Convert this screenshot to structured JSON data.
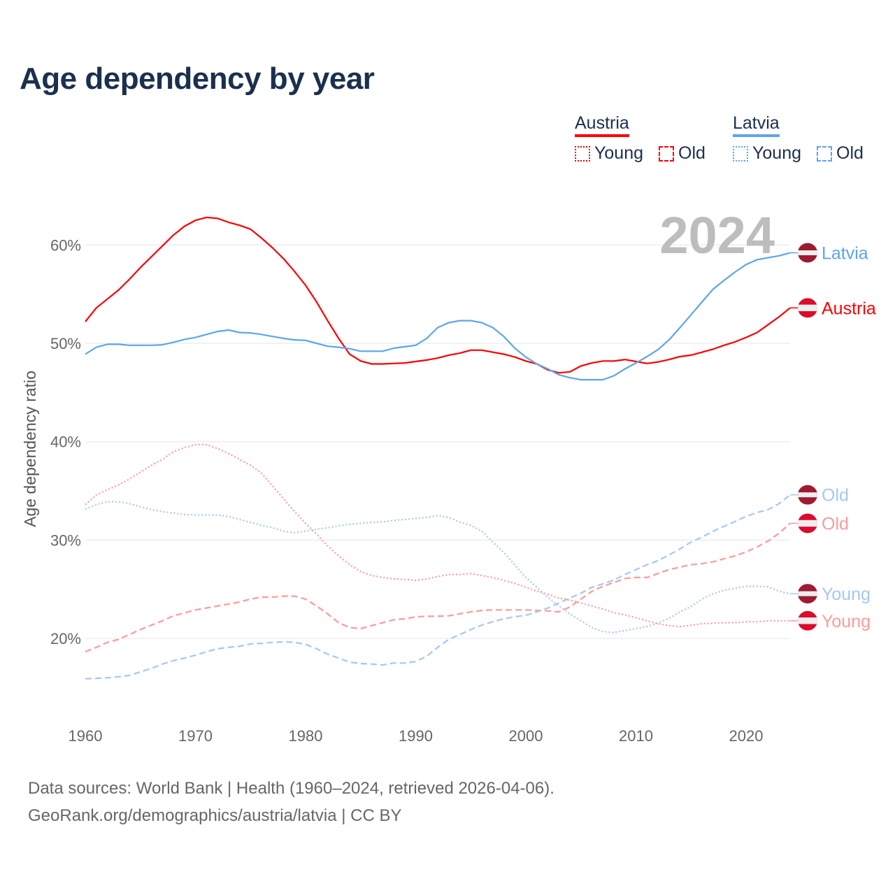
{
  "title": "Age dependency by year",
  "legend": {
    "countries": [
      {
        "name": "Austria",
        "color": "#ff0000",
        "light": "#ff9a9a",
        "items": [
          "Young",
          "Old"
        ]
      },
      {
        "name": "Latvia",
        "color": "#5da5ec",
        "light": "#a6c8ef",
        "items": [
          "Young",
          "Old"
        ]
      }
    ]
  },
  "year_watermark": "2024",
  "source": {
    "line1": "Data sources: World Bank | Health (1960–2024, retrieved 2026-04-06).",
    "line2": "GeoRank.org/demographics/austria/latvia | CC BY"
  },
  "chart_data": {
    "type": "line",
    "title": "Age dependency by year",
    "xlabel": "",
    "ylabel": "Age dependency ratio",
    "x_start": 1960,
    "x_end": 2024,
    "xlim": [
      1960,
      2024
    ],
    "ylim": [
      13,
      64
    ],
    "x_ticks": [
      "1960",
      "1970",
      "1980",
      "1990",
      "2000",
      "2010",
      "2020"
    ],
    "y_ticks": [
      20,
      30,
      40,
      50,
      60
    ],
    "y_tick_labels": [
      "20%",
      "30%",
      "40%",
      "50%",
      "60%"
    ],
    "grid": true,
    "series": [
      {
        "name": "Austria",
        "label": "Austria",
        "kind": "total",
        "style": "solid",
        "flag": "austria",
        "values": [
          52.2,
          53.6,
          54.5,
          55.4,
          56.5,
          57.7,
          58.8,
          59.9,
          61.0,
          61.9,
          62.5,
          62.8,
          62.7,
          62.3,
          62.0,
          61.6,
          60.7,
          59.7,
          58.6,
          57.3,
          55.9,
          54.2,
          52.3,
          50.5,
          48.9,
          48.2,
          47.9,
          47.9,
          47.95,
          48.0,
          48.15,
          48.3,
          48.5,
          48.8,
          49.0,
          49.3,
          49.3,
          49.1,
          48.9,
          48.6,
          48.2,
          47.9,
          47.3,
          47.0,
          47.1,
          47.7,
          48.0,
          48.2,
          48.2,
          48.35,
          48.15,
          47.95,
          48.1,
          48.35,
          48.65,
          48.8,
          49.1,
          49.4,
          49.8,
          50.15,
          50.6,
          51.1,
          51.9,
          52.7,
          53.6
        ]
      },
      {
        "name": "Latvia",
        "label": "Latvia",
        "kind": "total",
        "style": "solid",
        "flag": "latvia",
        "values": [
          48.9,
          49.6,
          49.9,
          49.9,
          49.8,
          49.8,
          49.8,
          49.85,
          50.1,
          50.4,
          50.6,
          50.9,
          51.2,
          51.35,
          51.1,
          51.05,
          50.9,
          50.7,
          50.5,
          50.35,
          50.3,
          50.0,
          49.7,
          49.6,
          49.45,
          49.2,
          49.2,
          49.2,
          49.5,
          49.65,
          49.8,
          50.5,
          51.6,
          52.1,
          52.3,
          52.3,
          52.1,
          51.6,
          50.7,
          49.5,
          48.6,
          47.9,
          47.4,
          46.8,
          46.5,
          46.3,
          46.3,
          46.3,
          46.7,
          47.4,
          48.0,
          48.65,
          49.35,
          50.35,
          51.6,
          52.9,
          54.2,
          55.5,
          56.4,
          57.25,
          58.0,
          58.5,
          58.7,
          58.9,
          59.2
        ]
      },
      {
        "name": "Austria Young",
        "label": "Young",
        "kind": "young",
        "style": "dotted",
        "flag": "austria",
        "values": [
          33.6,
          34.6,
          35.1,
          35.6,
          36.2,
          36.9,
          37.6,
          38.2,
          39.0,
          39.4,
          39.7,
          39.7,
          39.3,
          38.8,
          38.2,
          37.6,
          36.8,
          35.5,
          34.2,
          32.9,
          31.7,
          30.6,
          29.4,
          28.4,
          27.5,
          26.8,
          26.4,
          26.2,
          26.05,
          26.0,
          25.9,
          26.05,
          26.3,
          26.5,
          26.5,
          26.6,
          26.4,
          26.2,
          25.9,
          25.6,
          25.2,
          24.8,
          24.5,
          24.1,
          23.9,
          23.6,
          23.3,
          23.0,
          22.6,
          22.4,
          22.1,
          21.8,
          21.5,
          21.3,
          21.2,
          21.35,
          21.5,
          21.55,
          21.6,
          21.6,
          21.7,
          21.7,
          21.8,
          21.8,
          21.8
        ]
      },
      {
        "name": "Austria Old",
        "label": "Old",
        "kind": "old",
        "style": "dashed",
        "flag": "austria",
        "values": [
          18.65,
          19.1,
          19.6,
          19.9,
          20.4,
          20.9,
          21.35,
          21.8,
          22.3,
          22.6,
          22.9,
          23.1,
          23.3,
          23.5,
          23.7,
          24.0,
          24.2,
          24.2,
          24.3,
          24.3,
          24.0,
          23.3,
          22.5,
          21.6,
          21.1,
          21.0,
          21.3,
          21.6,
          21.9,
          22.0,
          22.2,
          22.25,
          22.25,
          22.3,
          22.5,
          22.7,
          22.85,
          22.9,
          22.9,
          22.9,
          22.9,
          22.85,
          22.8,
          22.7,
          23.2,
          24.0,
          24.8,
          25.3,
          25.7,
          26.1,
          26.2,
          26.2,
          26.6,
          27.0,
          27.25,
          27.5,
          27.6,
          27.8,
          28.1,
          28.4,
          28.8,
          29.3,
          29.9,
          30.7,
          31.7
        ]
      },
      {
        "name": "Latvia Young",
        "label": "Young",
        "kind": "young",
        "style": "dotted",
        "flag": "latvia",
        "values": [
          33.15,
          33.6,
          33.9,
          33.9,
          33.7,
          33.4,
          33.1,
          32.9,
          32.75,
          32.6,
          32.55,
          32.55,
          32.55,
          32.4,
          32.1,
          31.8,
          31.5,
          31.25,
          30.9,
          30.75,
          30.9,
          31.1,
          31.25,
          31.45,
          31.6,
          31.7,
          31.8,
          31.85,
          32.0,
          32.1,
          32.2,
          32.3,
          32.5,
          32.3,
          31.85,
          31.5,
          30.9,
          29.8,
          28.75,
          27.45,
          26.2,
          25.2,
          24.2,
          23.3,
          22.5,
          21.8,
          21.1,
          20.7,
          20.6,
          20.8,
          21.0,
          21.2,
          21.55,
          22.05,
          22.7,
          23.25,
          24.0,
          24.55,
          24.9,
          25.1,
          25.3,
          25.3,
          25.25,
          24.8,
          24.55
        ]
      },
      {
        "name": "Latvia Old",
        "label": "Old",
        "kind": "old",
        "style": "dashed",
        "flag": "latvia",
        "values": [
          15.9,
          15.95,
          16.0,
          16.1,
          16.25,
          16.6,
          16.95,
          17.4,
          17.75,
          18.0,
          18.3,
          18.65,
          18.95,
          19.1,
          19.2,
          19.45,
          19.5,
          19.6,
          19.65,
          19.6,
          19.4,
          18.95,
          18.4,
          18.0,
          17.6,
          17.45,
          17.4,
          17.3,
          17.5,
          17.5,
          17.65,
          18.2,
          19.1,
          19.9,
          20.4,
          20.9,
          21.35,
          21.7,
          22.0,
          22.2,
          22.35,
          22.7,
          23.1,
          23.6,
          24.1,
          24.6,
          25.2,
          25.55,
          25.95,
          26.5,
          27.0,
          27.5,
          27.9,
          28.5,
          29.1,
          29.8,
          30.3,
          30.9,
          31.4,
          31.9,
          32.4,
          32.8,
          33.1,
          33.7,
          34.6
        ]
      }
    ]
  }
}
